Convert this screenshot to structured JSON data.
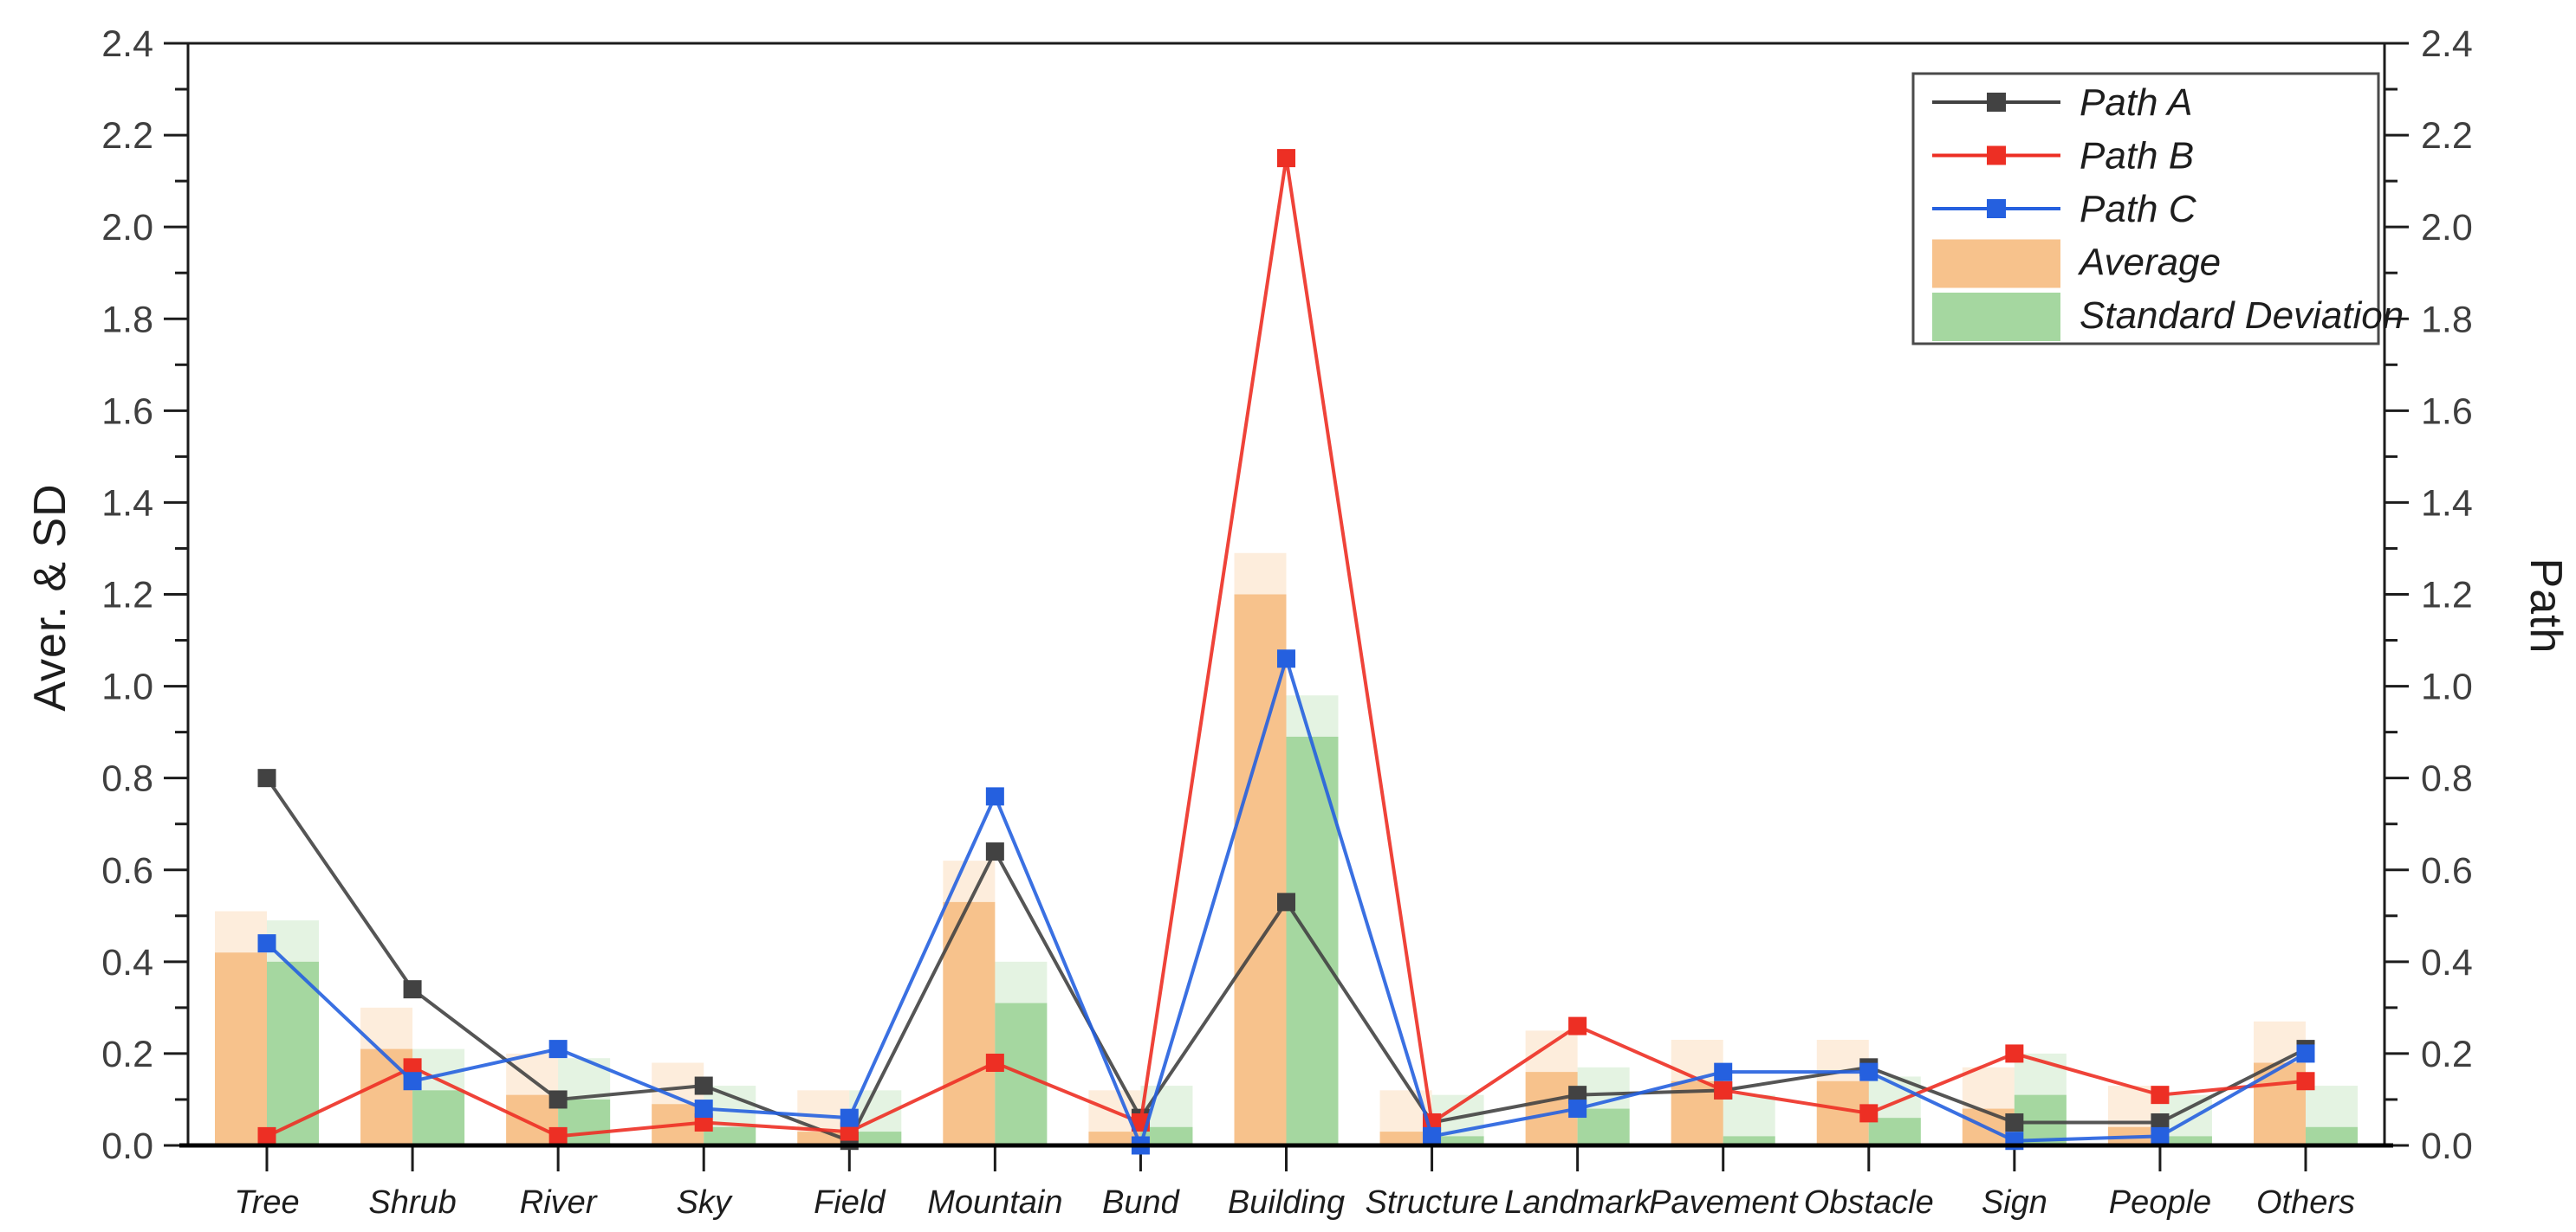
{
  "chart_data": {
    "type": "composite-bar-line",
    "title": "",
    "categories": [
      "Tree",
      "Shrub",
      "River",
      "Sky",
      "Field",
      "Mountain",
      "Bund",
      "Building",
      "Structure",
      "Landmark",
      "Pavement",
      "Obstacle",
      "Sign",
      "People",
      "Others"
    ],
    "bar_series": [
      {
        "name": "Average",
        "color": "#F7C28C",
        "values": [
          0.42,
          0.21,
          0.11,
          0.09,
          0.03,
          0.53,
          0.03,
          1.2,
          0.03,
          0.16,
          0.14,
          0.14,
          0.08,
          0.04,
          0.18
        ]
      },
      {
        "name": "Standard Deviation",
        "color": "#A5D7A0",
        "values": [
          0.4,
          0.12,
          0.1,
          0.04,
          0.03,
          0.31,
          0.04,
          0.89,
          0.02,
          0.08,
          0.02,
          0.06,
          0.11,
          0.02,
          0.04
        ]
      }
    ],
    "line_series": [
      {
        "name": "Path A",
        "color": "#424242",
        "values": [
          0.8,
          0.34,
          0.1,
          0.13,
          0.01,
          0.64,
          0.06,
          0.53,
          0.05,
          0.11,
          0.12,
          0.17,
          0.05,
          0.05,
          0.21
        ]
      },
      {
        "name": "Path B",
        "color": "#ED2F24",
        "values": [
          0.02,
          0.17,
          0.02,
          0.05,
          0.03,
          0.18,
          0.05,
          2.15,
          0.05,
          0.26,
          0.12,
          0.07,
          0.2,
          0.11,
          0.14
        ]
      },
      {
        "name": "Path C",
        "color": "#2560DF",
        "values": [
          0.44,
          0.14,
          0.21,
          0.08,
          0.06,
          0.76,
          0.0,
          1.06,
          0.02,
          0.08,
          0.16,
          0.16,
          0.01,
          0.02,
          0.2
        ]
      }
    ],
    "left_axis": {
      "label": "Aver. & SD",
      "min": 0.0,
      "max": 2.4,
      "major_step": 0.2,
      "minor_step": 0.1,
      "tick_labels": [
        "0.0",
        "0.2",
        "0.4",
        "0.6",
        "0.8",
        "1.0",
        "1.2",
        "1.4",
        "1.6",
        "1.8",
        "2.0",
        "2.2",
        "2.4"
      ]
    },
    "right_axis": {
      "label": "Path",
      "min": 0.0,
      "max": 2.4,
      "major_step": 0.2,
      "minor_step": 0.1,
      "tick_labels": [
        "0.0",
        "0.2",
        "0.4",
        "0.6",
        "0.8",
        "1.0",
        "1.2",
        "1.4",
        "1.6",
        "1.8",
        "2.0",
        "2.2",
        "2.4"
      ]
    },
    "legend": {
      "position": "top-right",
      "items": [
        {
          "label": "Path A",
          "type": "line",
          "color": "#424242"
        },
        {
          "label": "Path B",
          "type": "line",
          "color": "#ED2F24"
        },
        {
          "label": "Path C",
          "type": "line",
          "color": "#2560DF"
        },
        {
          "label": "Average",
          "type": "bar",
          "color": "#F7C28C"
        },
        {
          "label": "Standard Deviation",
          "type": "bar",
          "color": "#A5D7A0"
        }
      ]
    },
    "grid": false,
    "styles": {
      "spine_color": "#1c1c1c",
      "tick_text_color": "#3f3f3f",
      "category_text_color": "#1d1d1d"
    }
  }
}
